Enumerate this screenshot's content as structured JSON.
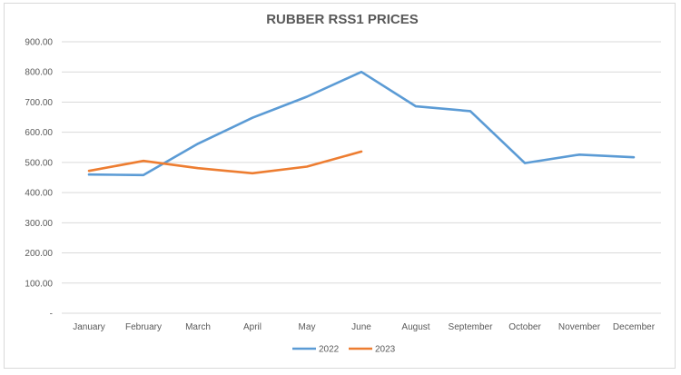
{
  "chart_data": {
    "type": "line",
    "title": "RUBBER RSS1 PRICES",
    "categories": [
      "January",
      "February",
      "March",
      "April",
      "May",
      "June",
      "August",
      "September",
      "October",
      "November",
      "December"
    ],
    "y_tick_labels": [
      "-",
      "100.00",
      "200.00",
      "300.00",
      "400.00",
      "500.00",
      "600.00",
      "700.00",
      "800.00",
      "900.00"
    ],
    "ylim": [
      0,
      900
    ],
    "y_tick_step": 100,
    "grid": true,
    "legend_position": "bottom",
    "series": [
      {
        "name": "2022",
        "color": "#5b9bd5",
        "values": [
          460,
          458,
          562,
          648,
          718,
          800,
          686,
          670,
          498,
          526,
          517
        ]
      },
      {
        "name": "2023",
        "color": "#ed7d31",
        "values": [
          472,
          505,
          481,
          464,
          486,
          536,
          null,
          null,
          null,
          null,
          null
        ]
      }
    ]
  }
}
